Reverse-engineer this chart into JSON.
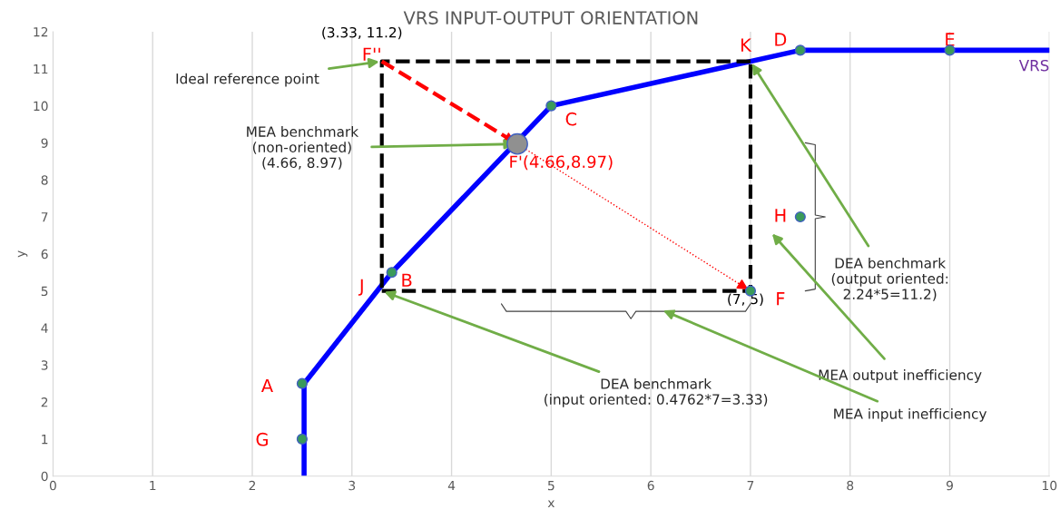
{
  "chart_data": {
    "type": "line",
    "title": "VRS INPUT-OUTPUT ORIENTATION",
    "xlabel": "x",
    "ylabel": "y",
    "xlim": [
      0,
      10
    ],
    "ylim": [
      0,
      12
    ],
    "xticks": [
      0,
      1,
      2,
      3,
      4,
      5,
      6,
      7,
      8,
      9,
      10
    ],
    "yticks": [
      0,
      1,
      2,
      3,
      4,
      5,
      6,
      7,
      8,
      9,
      10,
      11,
      12
    ],
    "grid": "x",
    "legend": false,
    "series": [
      {
        "name": "VRS",
        "color": "#0000ff",
        "line_style": "solid",
        "x": [
          2.52,
          2.52,
          3.4,
          5,
          7.5,
          10
        ],
        "values": [
          0,
          2.5,
          5.5,
          10,
          11.5,
          11.5
        ]
      },
      {
        "color": "#000000",
        "line_style": "dashed",
        "x": [
          3.3,
          7,
          7
        ],
        "values": [
          5,
          5,
          11.2
        ]
      },
      {
        "color": "#000000",
        "line_style": "dashed",
        "x": [
          7,
          3.3,
          3.3
        ],
        "values": [
          11.2,
          11.2,
          5
        ]
      },
      {
        "color": "#ff0000",
        "line_style": "dashed",
        "x": [
          3.3,
          4.66
        ],
        "values": [
          11.2,
          8.97
        ]
      },
      {
        "color": "#ff0000",
        "line_style": "dotted",
        "x": [
          4.66,
          7
        ],
        "values": [
          8.97,
          5
        ]
      },
      {
        "type": "scatter",
        "color": "#3a9a5a",
        "marker": "circle",
        "x": [
          2.5,
          3.4,
          5,
          7.5,
          9,
          7,
          2.5,
          7.5
        ],
        "values": [
          2.5,
          5.5,
          10,
          11.5,
          11.5,
          5,
          1,
          7
        ]
      },
      {
        "type": "scatter",
        "color": "#909090",
        "marker": "circle",
        "x": [
          4.66
        ],
        "values": [
          8.97
        ]
      }
    ],
    "annotations": [
      {
        "text": "A",
        "x": 2.5,
        "y": 2.5
      },
      {
        "text": "B",
        "x": 3.4,
        "y": 5.5
      },
      {
        "text": "C",
        "x": 5,
        "y": 10
      },
      {
        "text": "D",
        "x": 7.5,
        "y": 11.5
      },
      {
        "text": "E",
        "x": 9,
        "y": 11.5
      },
      {
        "text": "F",
        "x": 7,
        "y": 5
      },
      {
        "text": "G",
        "x": 2.5,
        "y": 1
      },
      {
        "text": "H",
        "x": 7.5,
        "y": 7
      },
      {
        "text": "J",
        "x": 3.3,
        "y": 5
      },
      {
        "text": "K",
        "x": 7,
        "y": 11.2
      },
      {
        "text": "F''",
        "x": 3.3,
        "y": 11.2
      },
      {
        "text": "(3.33, 11.2)",
        "x": 3.33,
        "y": 11.2
      },
      {
        "text": "(7, 5)",
        "x": 7,
        "y": 5
      },
      {
        "text": "F'(4.66,8.97)",
        "x": 4.66,
        "y": 8.97
      },
      {
        "text": "Ideal reference point",
        "x": 3.3,
        "y": 11.2
      },
      {
        "text": "MEA benchmark\n(non-oriented)\n(4.66, 8.97)",
        "x": 4.66,
        "y": 8.97
      },
      {
        "text": "DEA benchmark\n(output oriented:\n2.24*5=11.2)",
        "x": 7,
        "y": 11.2
      },
      "MEA output inefficiency",
      "MEA input inefficiency",
      {
        "text": "DEA benchmark\n(input oriented: 0.4762*7=3.33)",
        "x": 3.3,
        "y": 5
      }
    ]
  }
}
